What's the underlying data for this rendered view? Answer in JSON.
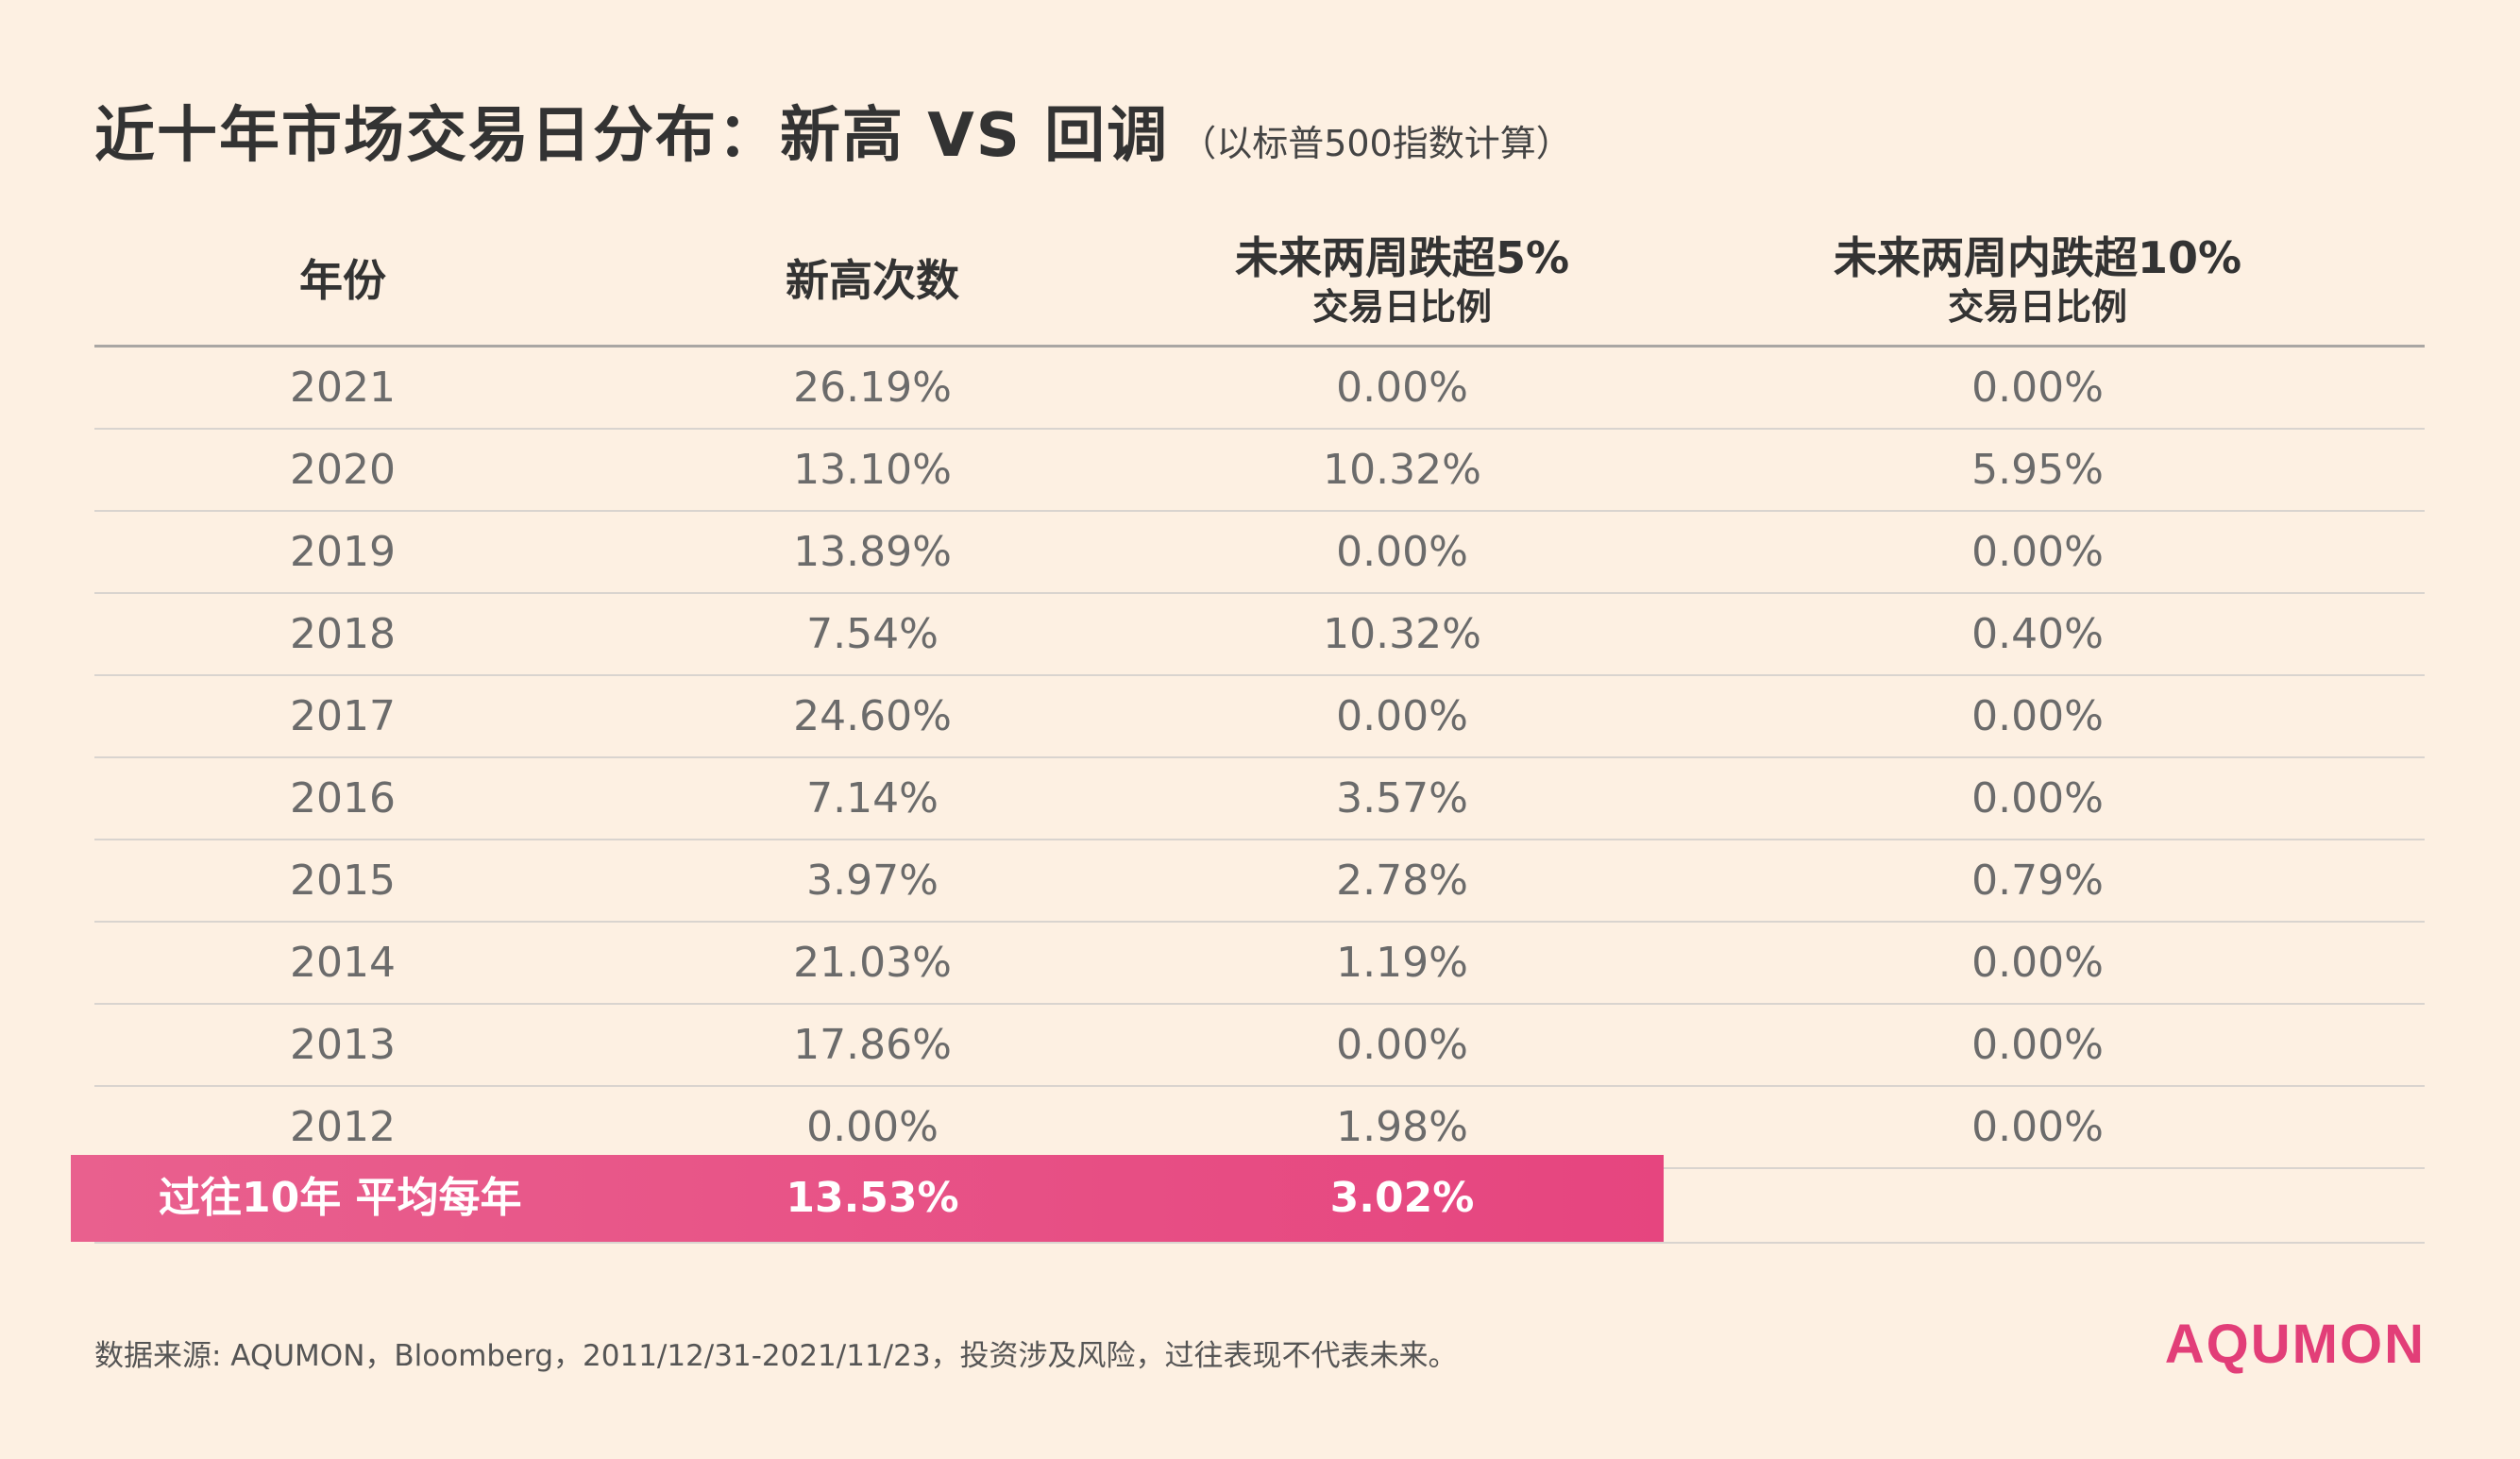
{
  "title": {
    "main": "近十年市场交易日分布：新高 VS 回调",
    "sub": "（以标普500指数计算）"
  },
  "chart_data": {
    "type": "table",
    "columns": [
      {
        "main": "年份",
        "sub": ""
      },
      {
        "main": "新高次数",
        "sub": ""
      },
      {
        "main": "未来两周跌超5%",
        "sub": "交易日比例"
      },
      {
        "main": "未来两周内跌超10%",
        "sub": "交易日比例"
      }
    ],
    "rows": [
      [
        "2021",
        "26.19%",
        "0.00%",
        "0.00%"
      ],
      [
        "2020",
        "13.10%",
        "10.32%",
        "5.95%"
      ],
      [
        "2019",
        "13.89%",
        "0.00%",
        "0.00%"
      ],
      [
        "2018",
        "7.54%",
        "10.32%",
        "0.40%"
      ],
      [
        "2017",
        "24.60%",
        "0.00%",
        "0.00%"
      ],
      [
        "2016",
        "7.14%",
        "3.57%",
        "0.00%"
      ],
      [
        "2015",
        "3.97%",
        "2.78%",
        "0.79%"
      ],
      [
        "2014",
        "21.03%",
        "1.19%",
        "0.00%"
      ],
      [
        "2013",
        "17.86%",
        "0.00%",
        "0.00%"
      ],
      [
        "2012",
        "0.00%",
        "1.98%",
        "0.00%"
      ]
    ],
    "summary": {
      "label": "过往10年 平均每年",
      "values": [
        "13.53%",
        "3.02%"
      ]
    }
  },
  "footer": {
    "note": "数据来源: AQUMON，Bloomberg，2011/12/31-2021/11/23，投资涉及风险，过往表现不代表未来。",
    "brand": "AQUMON"
  },
  "colors": {
    "background": "#fdf0e2",
    "accent": "#e6457f",
    "brand": "#e23e78"
  }
}
